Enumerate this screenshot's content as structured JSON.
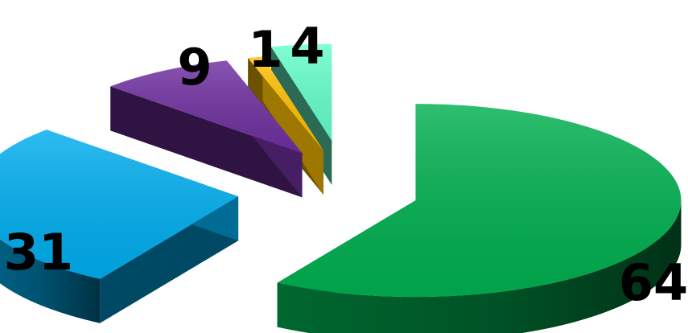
{
  "chart_data": {
    "type": "pie",
    "style": "3d-exploded",
    "title": "",
    "legend": "none",
    "slices": [
      {
        "label": "64",
        "value": 64,
        "color": "#00b050"
      },
      {
        "label": "31",
        "value": 31,
        "color": "#00aeef"
      },
      {
        "label": "9",
        "value": 9,
        "color": "#7030a0"
      },
      {
        "label": "1",
        "value": 1,
        "color": "#ffc000"
      },
      {
        "label": "4",
        "value": 4,
        "color": "#66ffcc"
      }
    ]
  }
}
